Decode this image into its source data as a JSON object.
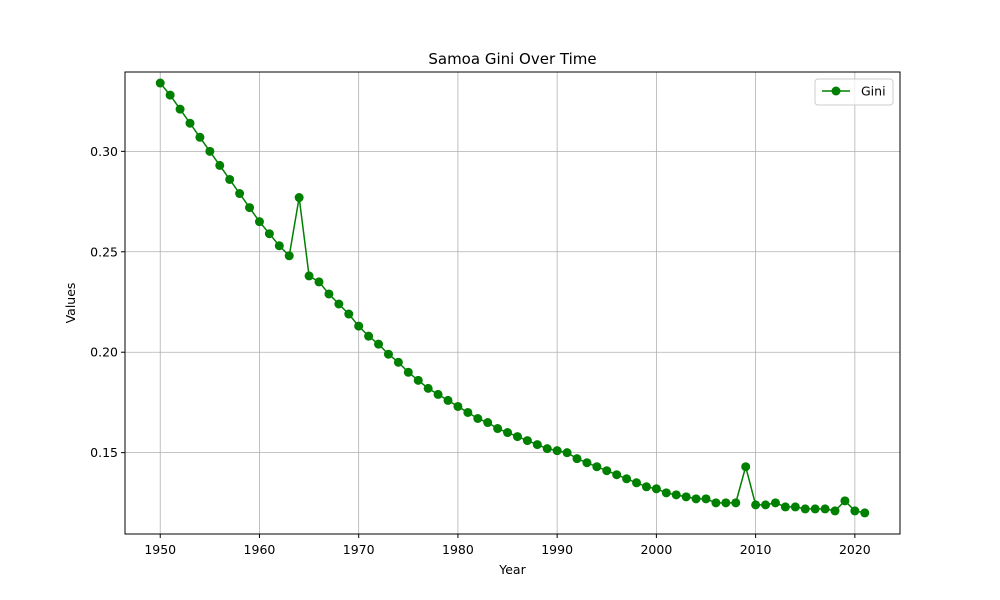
{
  "chart_data": {
    "type": "line",
    "title": "Samoa Gini Over Time",
    "xlabel": "Year",
    "ylabel": "Values",
    "xlim": [
      1946.45,
      2024.55
    ],
    "ylim": [
      0.1095,
      0.3395
    ],
    "xticks": [
      1950,
      1960,
      1970,
      1980,
      1990,
      2000,
      2010,
      2020
    ],
    "yticks": [
      0.15,
      0.2,
      0.25,
      0.3
    ],
    "ytick_labels": [
      "0.15",
      "0.20",
      "0.25",
      "0.30"
    ],
    "grid": true,
    "legend_position": "top-right",
    "series": [
      {
        "name": "Gini",
        "color": "#008000",
        "marker": "circle",
        "x": [
          1950,
          1951,
          1952,
          1953,
          1954,
          1955,
          1956,
          1957,
          1958,
          1959,
          1960,
          1961,
          1962,
          1963,
          1964,
          1965,
          1966,
          1967,
          1968,
          1969,
          1970,
          1971,
          1972,
          1973,
          1974,
          1975,
          1976,
          1977,
          1978,
          1979,
          1980,
          1981,
          1982,
          1983,
          1984,
          1985,
          1986,
          1987,
          1988,
          1989,
          1990,
          1991,
          1992,
          1993,
          1994,
          1995,
          1996,
          1997,
          1998,
          1999,
          2000,
          2001,
          2002,
          2003,
          2004,
          2005,
          2006,
          2007,
          2008,
          2009,
          2010,
          2011,
          2012,
          2013,
          2014,
          2015,
          2016,
          2017,
          2018,
          2019,
          2020,
          2021
        ],
        "values": [
          0.334,
          0.328,
          0.321,
          0.314,
          0.307,
          0.3,
          0.293,
          0.286,
          0.279,
          0.272,
          0.265,
          0.259,
          0.253,
          0.248,
          0.277,
          0.238,
          0.235,
          0.229,
          0.224,
          0.219,
          0.213,
          0.208,
          0.204,
          0.199,
          0.195,
          0.19,
          0.186,
          0.182,
          0.179,
          0.176,
          0.173,
          0.17,
          0.167,
          0.165,
          0.162,
          0.16,
          0.158,
          0.156,
          0.154,
          0.152,
          0.151,
          0.15,
          0.147,
          0.145,
          0.143,
          0.141,
          0.139,
          0.137,
          0.135,
          0.133,
          0.132,
          0.13,
          0.129,
          0.128,
          0.127,
          0.127,
          0.125,
          0.125,
          0.125,
          0.143,
          0.124,
          0.124,
          0.125,
          0.123,
          0.123,
          0.122,
          0.122,
          0.122,
          0.121,
          0.126,
          0.121,
          0.12
        ]
      }
    ]
  }
}
